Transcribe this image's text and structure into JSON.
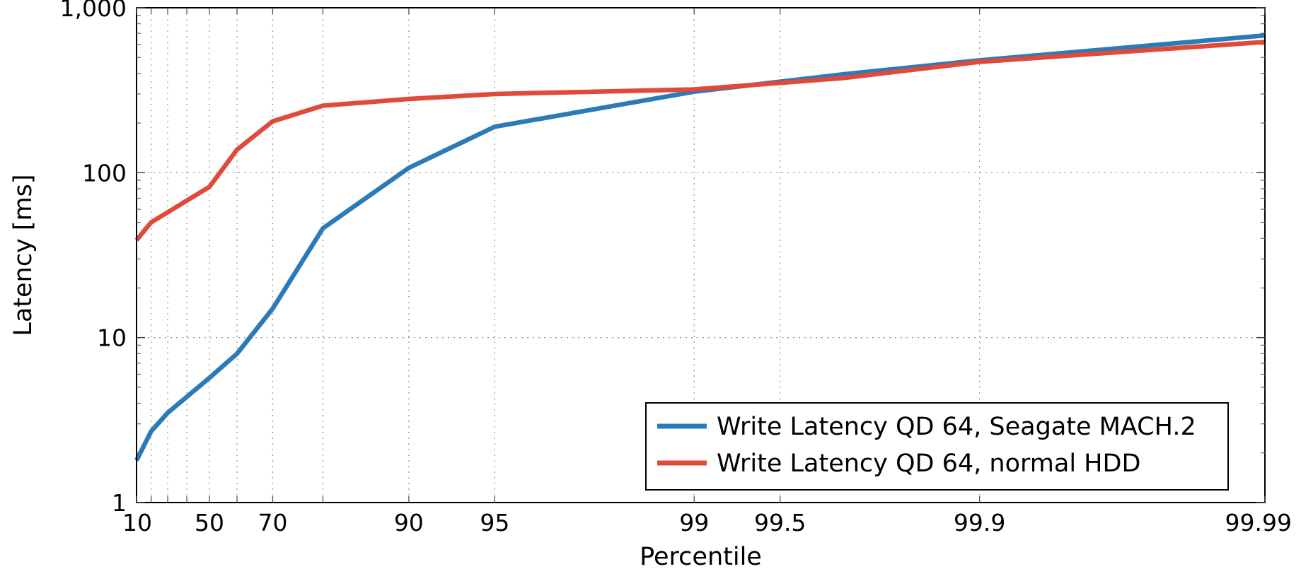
{
  "chart_data": {
    "type": "line",
    "title": "",
    "xlabel": "Percentile",
    "ylabel": "Latency [ms]",
    "x_scale": "percentile (log of 100-p)",
    "y_scale": "log",
    "ylim": [
      1,
      1000
    ],
    "xlim": [
      10,
      99.99
    ],
    "x_ticks": [
      10,
      50,
      70,
      90,
      95,
      99,
      99.5,
      99.9,
      99.99
    ],
    "x_tick_labels": [
      "10",
      "50",
      "70",
      "90",
      "95",
      "99",
      "99.5",
      "99.9",
      "99.99"
    ],
    "x_minor_grid": [
      20,
      30,
      40,
      60,
      80
    ],
    "y_ticks": [
      1,
      10,
      100,
      1000
    ],
    "y_tick_labels": [
      "1",
      "10",
      "100",
      "1,000"
    ],
    "grid": true,
    "legend_position": "bottom-right",
    "series": [
      {
        "name": "Write Latency QD 64, Seagate MACH.2",
        "color": "#2b7bb9",
        "x": [
          10,
          20,
          30,
          50,
          60,
          70,
          80,
          90,
          95,
          99,
          99.7,
          99.9,
          99.99
        ],
        "y": [
          1.8,
          2.7,
          3.5,
          5.7,
          8,
          15,
          46,
          107,
          190,
          310,
          395,
          480,
          680
        ]
      },
      {
        "name": "Write Latency QD 64, normal HDD",
        "color": "#e04a3b",
        "x": [
          10,
          20,
          50,
          60,
          70,
          80,
          90,
          95,
          99,
          99.7,
          99.9,
          99.99
        ],
        "y": [
          39,
          50,
          82,
          138,
          205,
          255,
          280,
          300,
          320,
          375,
          470,
          620
        ]
      }
    ]
  }
}
